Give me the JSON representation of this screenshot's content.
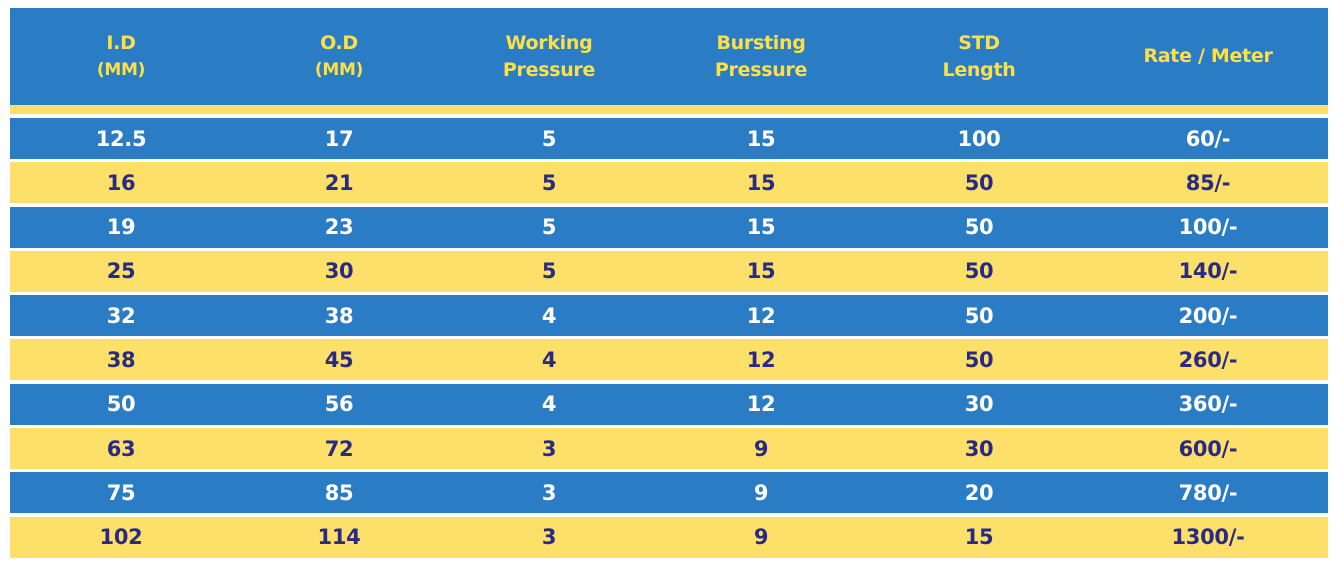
{
  "headers": [
    {
      "line1": "I.D",
      "line2": "(MM)",
      "small": true
    },
    {
      "line1": "O.D",
      "line2": "(MM)",
      "small": true
    },
    {
      "line1": "Working",
      "line2": "Pressure",
      "small": false
    },
    {
      "line1": "Bursting",
      "line2": "Pressure",
      "small": false
    },
    {
      "line1": "STD",
      "line2": "Length",
      "small": false
    },
    {
      "line1": "Rate / Meter",
      "line2": "",
      "small": false
    }
  ],
  "rows": [
    [
      "12.5",
      "17",
      "5",
      "15",
      "100",
      "60/-"
    ],
    [
      "16",
      "21",
      "5",
      "15",
      "50",
      "85/-"
    ],
    [
      "19",
      "23",
      "5",
      "15",
      "50",
      "100/-"
    ],
    [
      "25",
      "30",
      "5",
      "15",
      "50",
      "140/-"
    ],
    [
      "32",
      "38",
      "4",
      "12",
      "50",
      "200/-"
    ],
    [
      "38",
      "45",
      "4",
      "12",
      "50",
      "260/-"
    ],
    [
      "50",
      "56",
      "4",
      "12",
      "30",
      "360/-"
    ],
    [
      "63",
      "72",
      "3",
      "9",
      "30",
      "600/-"
    ],
    [
      "75",
      "85",
      "3",
      "9",
      "20",
      "780/-"
    ],
    [
      "102",
      "114",
      "3",
      "9",
      "15",
      "1300/-"
    ]
  ],
  "colors": {
    "blue": "#2a7cc4",
    "yellow": "#fde06a",
    "header_text": "#fde048",
    "dark_text": "#2b2a83",
    "light_text": "#ffffff"
  }
}
